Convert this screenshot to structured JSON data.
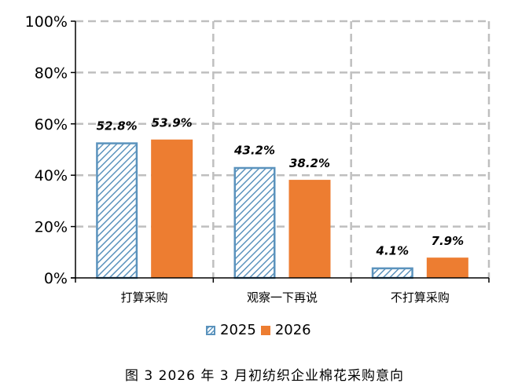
{
  "chart_data": {
    "type": "bar",
    "categories": [
      "打算采购",
      "观察一下再说",
      "不打算采购"
    ],
    "series": [
      {
        "name": "2025",
        "values": [
          52.8,
          43.2,
          4.1
        ],
        "labels": [
          "52.8%",
          "43.2%",
          "4.1%"
        ],
        "color": "#5b93bd",
        "fill": "hatched"
      },
      {
        "name": "2026",
        "values": [
          53.9,
          38.2,
          7.9
        ],
        "labels": [
          "53.9%",
          "38.2%",
          "7.9%"
        ],
        "color": "#ed7d31",
        "fill": "solid"
      }
    ],
    "yticks": [
      "0%",
      "20%",
      "40%",
      "60%",
      "80%",
      "100%"
    ],
    "ylim": [
      0,
      100
    ],
    "grid": true,
    "legend_position": "bottom"
  },
  "caption": "图 3   2026 年 3 月初纺织企业棉花采购意向"
}
